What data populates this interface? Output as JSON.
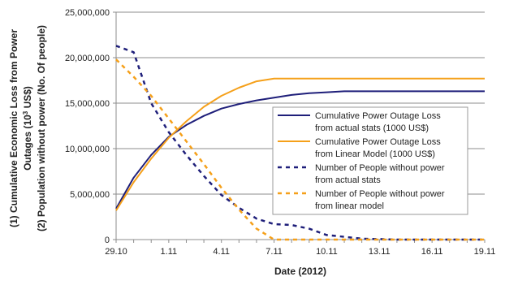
{
  "chart_data": {
    "type": "line",
    "xlabel": "Date (2012)",
    "ylabel_line1": "(1) Cumulative Economic Loss from Power",
    "ylabel_line2_prefix": "Outages (10",
    "ylabel_line2_sup": "3",
    "ylabel_line2_suffix": " US$)",
    "ylabel_line3": "(2) Population without power (No. Of people)",
    "xlim": [
      "2012-10-29",
      "2012-11-19"
    ],
    "ylim": [
      0,
      25000000
    ],
    "x_ticks": [
      "29.10",
      "1.11",
      "4.11",
      "7.11",
      "10.11",
      "13.11",
      "16.11",
      "19.11"
    ],
    "y_ticks": [
      "0",
      "5,000,000",
      "10,000,000",
      "15,000,000",
      "20,000,000",
      "25,000,000"
    ],
    "grid": true,
    "legend_position": "right",
    "x": [
      "2012-10-29",
      "2012-10-30",
      "2012-10-31",
      "2012-11-01",
      "2012-11-02",
      "2012-11-03",
      "2012-11-04",
      "2012-11-05",
      "2012-11-06",
      "2012-11-07",
      "2012-11-08",
      "2012-11-09",
      "2012-11-10",
      "2012-11-11",
      "2012-11-12",
      "2012-11-13",
      "2012-11-14",
      "2012-11-15",
      "2012-11-16",
      "2012-11-17",
      "2012-11-18",
      "2012-11-19"
    ],
    "series": [
      {
        "name": "Cumulative Power Outage Loss from actual stats (1000 US$)",
        "color": "#1f1f7a",
        "style": "solid",
        "values": [
          3400000,
          6800000,
          9300000,
          11300000,
          12600000,
          13600000,
          14400000,
          14900000,
          15300000,
          15600000,
          15900000,
          16100000,
          16200000,
          16300000,
          16300000,
          16300000,
          16300000,
          16300000,
          16300000,
          16300000,
          16300000,
          16300000
        ]
      },
      {
        "name": "Cumulative Power Outage Loss from Linear Model (1000 US$)",
        "color": "#f5a01a",
        "style": "solid",
        "values": [
          3200000,
          6300000,
          8900000,
          11200000,
          13000000,
          14600000,
          15800000,
          16700000,
          17400000,
          17700000,
          17700000,
          17700000,
          17700000,
          17700000,
          17700000,
          17700000,
          17700000,
          17700000,
          17700000,
          17700000,
          17700000,
          17700000
        ]
      },
      {
        "name": "Number of People without power from actual stats",
        "color": "#1f1f7a",
        "style": "dashed",
        "values": [
          21300000,
          20600000,
          15000000,
          11800000,
          9300000,
          7000000,
          4900000,
          3500000,
          2300000,
          1700000,
          1600000,
          1200000,
          500000,
          300000,
          100000,
          50000,
          0,
          0,
          0,
          0,
          0,
          0
        ]
      },
      {
        "name": "Number of People without power from linear model",
        "color": "#f5a01a",
        "style": "dashed",
        "values": [
          19800000,
          17900000,
          15800000,
          13300000,
          10800000,
          8300000,
          5700000,
          3300000,
          1200000,
          0,
          0,
          0,
          0,
          0,
          0,
          0,
          0,
          0,
          0,
          0,
          0,
          0
        ]
      }
    ]
  }
}
